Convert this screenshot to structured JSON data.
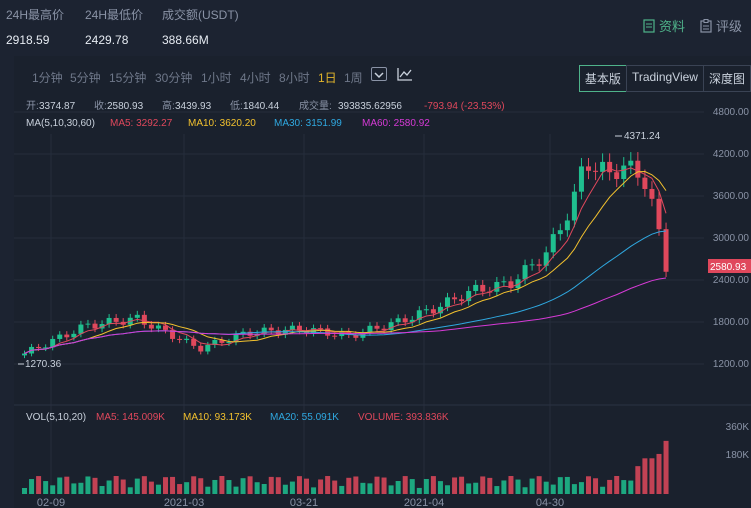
{
  "stats": [
    {
      "label": "24H最高价",
      "value": "2918.59"
    },
    {
      "label": "24H最低价",
      "value": "2429.78"
    },
    {
      "label": "成交额(USDT)",
      "value": "388.66M"
    }
  ],
  "header_links": {
    "info": "资料",
    "rating": "评级"
  },
  "timeframes": [
    "1分钟",
    "5分钟",
    "15分钟",
    "30分钟",
    "1小时",
    "4小时",
    "8小时",
    "1日",
    "1周"
  ],
  "active_timeframe": "1日",
  "view_tabs": [
    "基本版",
    "TradingView",
    "深度图"
  ],
  "active_view": "基本版",
  "ohlc": {
    "open_label": "开:",
    "open": "3374.87",
    "close_label": "收:",
    "close": "2580.93",
    "high_label": "高:",
    "high": "3439.93",
    "low_label": "低:",
    "low": "1840.44",
    "volume_label": "成交量:",
    "volume": "393835.62956",
    "change": "-793.94 (-23.53%)"
  },
  "ma_legend": {
    "title": "MA(5,10,30,60)",
    "items": [
      {
        "label": "MA5: 3292.27",
        "color": "#e0485c"
      },
      {
        "label": "MA10: 3620.20",
        "color": "#f2c12e"
      },
      {
        "label": "MA30: 3151.99",
        "color": "#2fa8e0"
      },
      {
        "label": "MA60: 2580.92",
        "color": "#d63ad6"
      }
    ]
  },
  "vol_legend": {
    "title": "VOL(5,10,20)",
    "items": [
      {
        "label": "MA5: 145.009K",
        "color": "#e0485c"
      },
      {
        "label": "MA10: 93.173K",
        "color": "#f2c12e"
      },
      {
        "label": "MA20: 55.091K",
        "color": "#2fa8e0"
      },
      {
        "label": "VOLUME: 393.836K",
        "color": "#e0485c"
      }
    ]
  },
  "price_axis": [
    "4800.00",
    "4200.00",
    "3600.00",
    "3000.00",
    "2400.00",
    "1800.00",
    "1200.00"
  ],
  "vol_axis": [
    "360K",
    "180K"
  ],
  "date_axis": [
    "02-09",
    "2021-03",
    "03-21",
    "2021-04",
    "04-30"
  ],
  "last_price": "2580.93",
  "high_marker": "4371.24",
  "low_marker": "1270.36",
  "colors": {
    "up": "#1fbf8f",
    "down": "#e0485c",
    "accent": "#4fb38a",
    "price_tag": "#e0485c"
  }
}
